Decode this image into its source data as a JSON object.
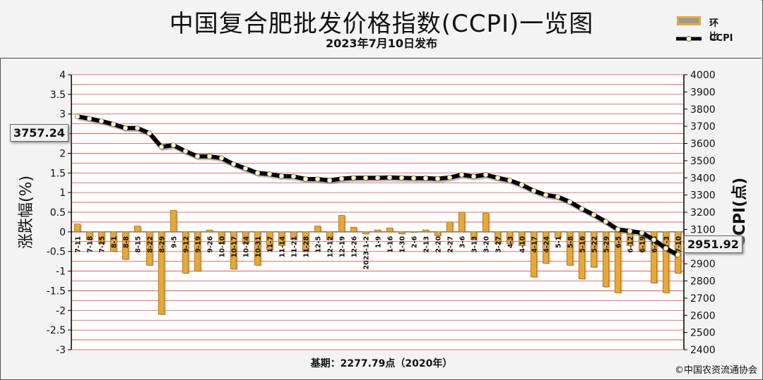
{
  "header": {
    "title": "中国复合肥批发价格指数(CCPI)一览图",
    "subtitle": "2023年7月10日发布"
  },
  "legend": {
    "bar_label": "环比",
    "line_label": "CCPI"
  },
  "footer": {
    "base_note": "基期：2277.79点（2020年）",
    "copyright": "©中国农资流通协会"
  },
  "callouts": {
    "start_value": "3757.24",
    "end_value": "2951.92"
  },
  "colors": {
    "bar_fill": "#e8a838",
    "bar_edge": "#8a5a10",
    "line": "#000000",
    "marker": "#fff6c8",
    "grid": "#d94848",
    "plot_bg": "#ffffff",
    "frame_bg": "#f3f3f3"
  },
  "chart_data": {
    "type": "bar+line",
    "title": "中国复合肥批发价格指数(CCPI)一览图",
    "ylabel_left": "涨跌幅(%)",
    "ylabel_right": "CCPI(点)",
    "ylim_left": [
      -3,
      4
    ],
    "ylim_right": [
      2400,
      4000
    ],
    "left_ticks": [
      "4",
      "3.5",
      "3",
      "2.5",
      "2",
      "1.5",
      "1",
      "0.5",
      "0",
      "-0.5",
      "-1",
      "-1.5",
      "-2",
      "-2.5",
      "-3"
    ],
    "right_ticks": [
      "4000",
      "3900",
      "3800",
      "3700",
      "3600",
      "3500",
      "3400",
      "3300",
      "3200",
      "3100",
      "3000",
      "2900",
      "2800",
      "2700",
      "2600",
      "2500",
      "2400"
    ],
    "grid": true,
    "legend_position": "top-right",
    "categories": [
      "7-11",
      "7-18",
      "7-25",
      "8-1",
      "8-8",
      "8-15",
      "8-22",
      "8-29",
      "9-5",
      "9-12",
      "9-19",
      "9-26",
      "10-10",
      "10-17",
      "10-24",
      "10-31",
      "11-7",
      "11-14",
      "11-21",
      "11-28",
      "12-5",
      "12-12",
      "12-19",
      "12-26",
      "2023-1-2",
      "1-9",
      "1-16",
      "1-30",
      "2-6",
      "2-13",
      "2-20",
      "2-27",
      "3-6",
      "3-13",
      "3-20",
      "3-27",
      "4-3",
      "4-10",
      "4-17",
      "4-24",
      "5-1",
      "5-8",
      "5-16",
      "5-22",
      "5-29",
      "6-5",
      "6-12",
      "6-19",
      "6-26",
      "7-3",
      "7-10"
    ],
    "series": [
      {
        "name": "环比",
        "type": "bar",
        "axis": "left",
        "values": [
          0.2,
          -0.2,
          -0.3,
          -0.5,
          -0.7,
          0.15,
          -0.85,
          -2.1,
          0.55,
          -1.05,
          -1.0,
          0.05,
          -0.3,
          -0.95,
          -0.3,
          -0.85,
          -0.45,
          -0.35,
          -0.2,
          -0.5,
          0.15,
          -0.2,
          0.42,
          0.12,
          -0.05,
          0.05,
          0.1,
          -0.05,
          0.0,
          0.05,
          -0.1,
          0.25,
          0.5,
          -0.2,
          0.48,
          -0.3,
          -0.3,
          -0.35,
          -1.15,
          -0.8,
          -0.15,
          -0.85,
          -1.2,
          -0.9,
          -1.4,
          -1.55,
          -0.35,
          -0.5,
          -1.3,
          -1.55,
          -1.05
        ]
      },
      {
        "name": "CCPI",
        "type": "line",
        "axis": "right",
        "values": [
          3757.24,
          3745,
          3730,
          3712,
          3690,
          3690,
          3660,
          3580,
          3590,
          3555,
          3525,
          3525,
          3515,
          3480,
          3455,
          3428,
          3422,
          3410,
          3408,
          3393,
          3393,
          3385,
          3395,
          3400,
          3400,
          3400,
          3402,
          3400,
          3398,
          3398,
          3395,
          3402,
          3418,
          3408,
          3418,
          3400,
          3385,
          3360,
          3325,
          3300,
          3290,
          3260,
          3220,
          3185,
          3145,
          3100,
          3090,
          3080,
          3040,
          2990,
          2951.92
        ]
      }
    ]
  }
}
